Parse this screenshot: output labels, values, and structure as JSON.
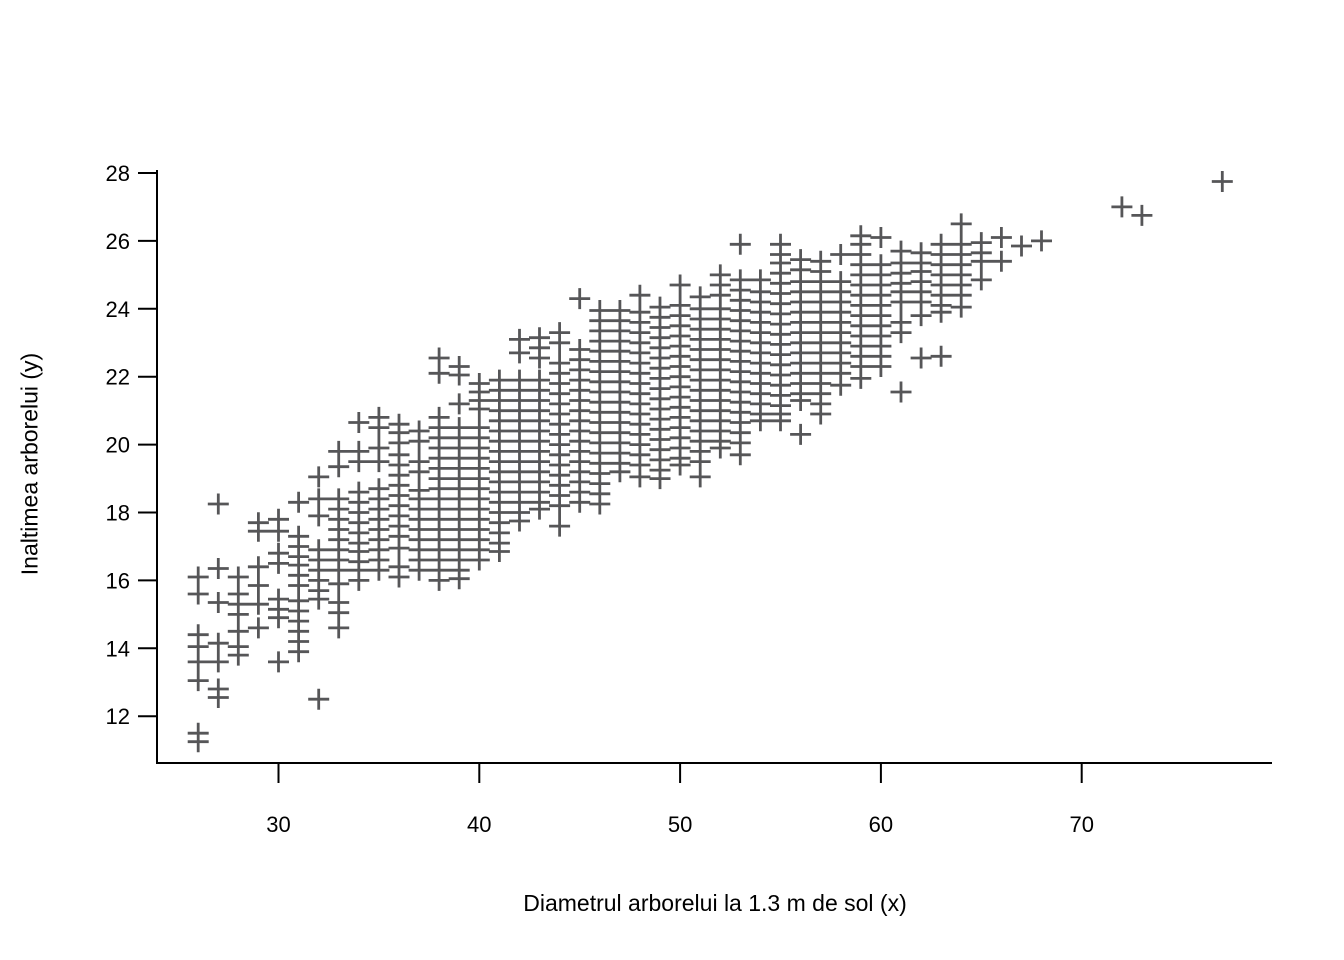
{
  "chart_data": {
    "type": "scatter",
    "title": "",
    "xlabel": "Diametrul arborelui la 1.3 m de sol (x)",
    "ylabel": "Inaltimea arborelui (y)",
    "marker": "plus-cross",
    "marker_color": "#565658",
    "axis_color": "#000000",
    "grid": "off",
    "legend": "none",
    "x_ticks": [
      30,
      40,
      50,
      60,
      70
    ],
    "y_ticks": [
      12,
      14,
      16,
      18,
      20,
      22,
      24,
      26,
      28
    ],
    "xlim": [
      24,
      79.5
    ],
    "ylim": [
      10.6,
      28.3
    ],
    "columns": [
      {
        "x": 26,
        "heights": [
          16.1,
          15.6,
          14.4,
          14.05,
          13.6,
          13.05,
          11.5,
          11.25
        ]
      },
      {
        "x": 27,
        "heights": [
          18.25,
          16.35,
          15.35,
          14.15,
          13.6,
          12.8,
          12.55
        ]
      },
      {
        "x": 28,
        "heights": [
          16.1,
          15.6,
          15.3,
          15.0,
          14.5,
          14.05,
          13.8
        ]
      },
      {
        "x": 29,
        "heights": [
          17.7,
          17.45,
          16.4,
          15.85,
          15.3,
          14.6
        ]
      },
      {
        "x": 30,
        "heights": [
          17.8,
          17.45,
          16.8,
          16.5,
          15.45,
          15.15,
          14.9,
          13.6
        ]
      },
      {
        "x": 31,
        "heights": [
          18.3,
          17.3,
          17.0,
          16.7,
          16.45,
          16.15,
          15.85,
          15.4,
          15.1,
          14.8,
          14.5,
          14.2,
          13.9
        ]
      },
      {
        "x": 32,
        "heights": [
          19.05,
          18.4,
          17.9,
          16.9,
          16.6,
          16.3,
          16.0,
          15.7,
          15.45,
          12.5
        ]
      },
      {
        "x": 33,
        "heights": [
          19.8,
          19.35,
          18.4,
          18.1,
          17.8,
          17.5,
          17.2,
          16.9,
          16.6,
          16.3,
          15.9,
          15.35,
          15.05,
          14.6
        ]
      },
      {
        "x": 34,
        "heights": [
          20.65,
          19.8,
          19.5,
          18.6,
          18.3,
          18.0,
          17.7,
          17.4,
          17.1,
          16.85,
          16.55,
          16.3,
          16.0
        ]
      },
      {
        "x": 35,
        "heights": [
          20.8,
          20.5,
          19.9,
          19.5,
          18.7,
          18.4,
          18.1,
          17.8,
          17.5,
          17.2,
          16.9,
          16.6,
          16.3
        ]
      },
      {
        "x": 36,
        "heights": [
          20.6,
          20.35,
          20.05,
          19.7,
          19.4,
          19.1,
          18.8,
          18.5,
          18.2,
          17.9,
          17.6,
          17.3,
          16.95,
          16.4,
          16.1
        ]
      },
      {
        "x": 37,
        "heights": [
          20.4,
          20.1,
          19.5,
          19.2,
          18.65,
          18.4,
          18.1,
          17.8,
          17.5,
          17.2,
          16.9,
          16.6,
          16.3
        ]
      },
      {
        "x": 38,
        "heights": [
          22.55,
          22.1,
          20.8,
          20.5,
          20.2,
          19.9,
          19.6,
          19.3,
          19.0,
          18.7,
          18.4,
          18.1,
          17.8,
          17.5,
          17.2,
          16.9,
          16.6,
          16.3,
          16.0
        ]
      },
      {
        "x": 39,
        "heights": [
          22.3,
          22.05,
          21.2,
          20.5,
          20.2,
          19.9,
          19.6,
          19.3,
          19.0,
          18.7,
          18.4,
          18.1,
          17.8,
          17.5,
          17.2,
          16.9,
          16.6,
          16.3,
          16.05
        ]
      },
      {
        "x": 40,
        "heights": [
          21.8,
          21.55,
          21.3,
          21.05,
          20.5,
          20.2,
          19.9,
          19.6,
          19.3,
          19.0,
          18.7,
          18.4,
          18.1,
          17.8,
          17.5,
          17.2,
          16.9,
          16.6
        ]
      },
      {
        "x": 41,
        "heights": [
          21.9,
          21.6,
          21.3,
          21.0,
          20.7,
          20.4,
          20.1,
          19.8,
          19.5,
          19.2,
          18.9,
          18.6,
          18.3,
          18.0,
          17.7,
          17.4,
          17.1,
          16.85
        ]
      },
      {
        "x": 42,
        "heights": [
          23.1,
          22.7,
          21.9,
          21.6,
          21.3,
          21.0,
          20.7,
          20.4,
          20.1,
          19.8,
          19.5,
          19.2,
          18.9,
          18.6,
          18.3,
          18.0,
          17.75
        ]
      },
      {
        "x": 43,
        "heights": [
          23.15,
          22.85,
          22.55,
          21.9,
          21.6,
          21.3,
          21.0,
          20.7,
          20.4,
          20.1,
          19.8,
          19.5,
          19.2,
          18.9,
          18.6,
          18.3,
          18.1
        ]
      },
      {
        "x": 44,
        "heights": [
          23.3,
          23.0,
          22.4,
          22.1,
          21.8,
          21.5,
          21.2,
          20.9,
          20.6,
          20.3,
          20.0,
          19.7,
          19.4,
          19.1,
          18.8,
          18.5,
          18.2,
          17.6
        ]
      },
      {
        "x": 45,
        "heights": [
          24.3,
          22.8,
          22.5,
          22.2,
          21.9,
          21.6,
          21.3,
          21.0,
          20.7,
          20.4,
          20.1,
          19.8,
          19.5,
          19.2,
          18.9,
          18.6,
          18.3
        ]
      },
      {
        "x": 46,
        "heights": [
          23.95,
          23.65,
          23.35,
          23.05,
          22.75,
          22.45,
          22.15,
          21.85,
          21.55,
          21.25,
          20.95,
          20.65,
          20.35,
          20.05,
          19.75,
          19.45,
          19.15,
          18.85,
          18.55,
          18.25
        ]
      },
      {
        "x": 47,
        "heights": [
          23.95,
          23.65,
          23.35,
          23.05,
          22.75,
          22.45,
          22.15,
          21.85,
          21.55,
          21.25,
          20.95,
          20.65,
          20.35,
          20.05,
          19.75,
          19.45,
          19.2
        ]
      },
      {
        "x": 48,
        "heights": [
          24.4,
          23.9,
          23.6,
          23.3,
          23.0,
          22.7,
          22.4,
          22.1,
          21.8,
          21.5,
          21.2,
          20.9,
          20.6,
          20.3,
          20.0,
          19.7,
          19.4,
          19.05
        ]
      },
      {
        "x": 49,
        "heights": [
          24.05,
          23.75,
          23.45,
          23.15,
          22.85,
          22.55,
          22.25,
          21.95,
          21.65,
          21.35,
          21.05,
          20.75,
          20.45,
          20.15,
          19.85,
          19.55,
          19.25,
          19.0
        ]
      },
      {
        "x": 50,
        "heights": [
          24.7,
          24.1,
          23.8,
          23.5,
          23.2,
          22.9,
          22.6,
          22.3,
          22.0,
          21.7,
          21.4,
          21.1,
          20.8,
          20.5,
          20.2,
          19.9,
          19.6,
          19.4
        ]
      },
      {
        "x": 51,
        "heights": [
          24.35,
          24.0,
          23.7,
          23.4,
          23.1,
          22.8,
          22.5,
          22.2,
          21.9,
          21.6,
          21.3,
          21.0,
          20.7,
          20.4,
          20.1,
          19.8,
          19.5,
          19.05
        ]
      },
      {
        "x": 52,
        "heights": [
          25.0,
          24.7,
          24.4,
          24.0,
          23.7,
          23.4,
          23.1,
          22.8,
          22.5,
          22.2,
          21.9,
          21.6,
          21.3,
          21.0,
          20.7,
          20.4,
          20.1,
          19.9
        ]
      },
      {
        "x": 53,
        "heights": [
          25.9,
          24.85,
          24.55,
          24.25,
          23.95,
          23.65,
          23.35,
          23.05,
          22.75,
          22.45,
          22.15,
          21.85,
          21.55,
          21.25,
          20.95,
          20.65,
          20.35,
          20.05,
          19.7
        ]
      },
      {
        "x": 54,
        "heights": [
          24.85,
          24.5,
          24.2,
          23.9,
          23.6,
          23.3,
          23.0,
          22.7,
          22.4,
          22.1,
          21.8,
          21.5,
          21.2,
          20.9,
          20.7
        ]
      },
      {
        "x": 55,
        "heights": [
          25.9,
          25.6,
          25.35,
          25.05,
          24.75,
          24.45,
          24.15,
          23.85,
          23.55,
          23.25,
          22.95,
          22.65,
          22.35,
          22.05,
          21.75,
          21.45,
          21.15,
          20.9,
          20.7
        ]
      },
      {
        "x": 56,
        "heights": [
          25.45,
          25.15,
          24.8,
          24.5,
          24.2,
          23.9,
          23.6,
          23.3,
          23.0,
          22.7,
          22.4,
          22.1,
          21.8,
          21.5,
          21.3,
          20.3
        ]
      },
      {
        "x": 57,
        "heights": [
          25.4,
          25.1,
          24.8,
          24.5,
          24.2,
          23.9,
          23.6,
          23.3,
          23.0,
          22.7,
          22.4,
          22.1,
          21.8,
          21.5,
          21.2,
          20.9
        ]
      },
      {
        "x": 58,
        "heights": [
          25.6,
          24.8,
          24.5,
          24.2,
          23.9,
          23.6,
          23.3,
          23.0,
          22.7,
          22.4,
          22.1,
          21.75
        ]
      },
      {
        "x": 59,
        "heights": [
          26.15,
          25.9,
          25.6,
          25.3,
          25.0,
          24.7,
          24.4,
          24.1,
          23.8,
          23.5,
          23.2,
          22.9,
          22.6,
          22.3,
          21.95
        ]
      },
      {
        "x": 60,
        "heights": [
          26.1,
          25.3,
          25.0,
          24.7,
          24.4,
          24.1,
          23.8,
          23.5,
          23.2,
          22.9,
          22.6,
          22.3
        ]
      },
      {
        "x": 61,
        "heights": [
          25.7,
          25.35,
          25.05,
          24.75,
          24.5,
          24.2,
          23.6,
          23.3,
          21.55
        ]
      },
      {
        "x": 62,
        "heights": [
          25.65,
          25.35,
          25.1,
          24.8,
          24.5,
          24.2,
          23.8,
          22.55
        ]
      },
      {
        "x": 63,
        "heights": [
          25.9,
          25.6,
          25.3,
          25.0,
          24.7,
          24.4,
          24.1,
          23.9,
          22.6
        ]
      },
      {
        "x": 64,
        "heights": [
          26.5,
          25.9,
          25.6,
          25.3,
          25.0,
          24.7,
          24.4,
          24.05
        ]
      },
      {
        "x": 65,
        "heights": [
          25.95,
          25.65,
          25.4,
          24.85
        ]
      },
      {
        "x": 66,
        "heights": [
          26.1,
          25.4
        ]
      },
      {
        "x": 67,
        "heights": [
          25.85
        ]
      },
      {
        "x": 68,
        "heights": [
          26.0
        ]
      },
      {
        "x": 72,
        "heights": [
          27.0
        ]
      },
      {
        "x": 73,
        "heights": [
          26.75
        ]
      },
      {
        "x": 77,
        "heights": [
          27.75
        ]
      }
    ]
  }
}
